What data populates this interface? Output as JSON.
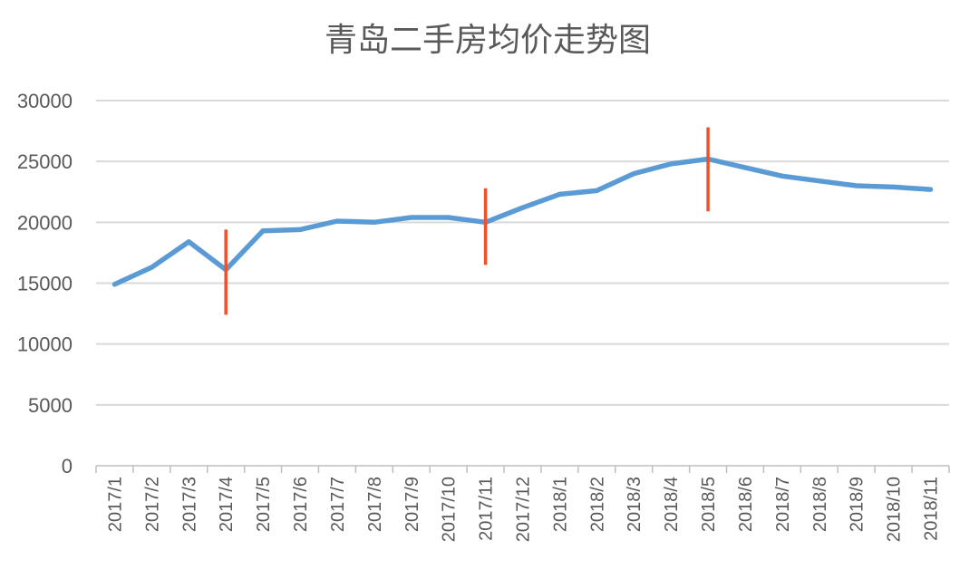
{
  "chart_data": {
    "type": "line",
    "title": "青岛二手房均价走势图",
    "xlabel": "",
    "ylabel": "",
    "ylim": [
      0,
      30000
    ],
    "yticks": [
      0,
      5000,
      10000,
      15000,
      20000,
      25000,
      30000
    ],
    "grid": true,
    "legend": "none",
    "categories": [
      "2017/1",
      "2017/2",
      "2017/3",
      "2017/4",
      "2017/5",
      "2017/6",
      "2017/7",
      "2017/8",
      "2017/9",
      "2017/10",
      "2017/11",
      "2017/12",
      "2018/1",
      "2018/2",
      "2018/3",
      "2018/4",
      "2018/5",
      "2018/6",
      "2018/7",
      "2018/8",
      "2018/9",
      "2018/10",
      "2018/11"
    ],
    "series": [
      {
        "color": "#5b9bd5",
        "values": [
          14900,
          16300,
          18400,
          16100,
          19300,
          19400,
          20100,
          20000,
          20400,
          20400,
          20000,
          21200,
          22300,
          22600,
          24000,
          24800,
          25200,
          24500,
          23800,
          23400,
          23000,
          22900,
          22700
        ]
      }
    ],
    "annotations": [
      {
        "type": "vertical-line",
        "x": "2017/4",
        "y_range": [
          12400,
          19400
        ],
        "color": "#f0502a"
      },
      {
        "type": "vertical-line",
        "x": "2017/11",
        "y_range": [
          16500,
          22800
        ],
        "color": "#f0502a"
      },
      {
        "type": "vertical-line",
        "x": "2018/5",
        "y_range": [
          20900,
          27800
        ],
        "color": "#f0502a"
      }
    ]
  }
}
